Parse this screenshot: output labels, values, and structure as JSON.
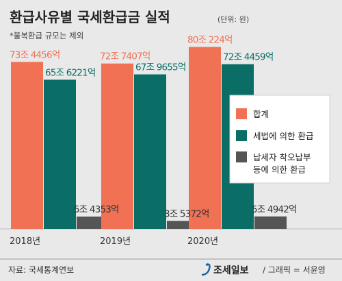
{
  "chart_data": {
    "type": "bar",
    "title": "환급사유별 국세환급금 실적",
    "unit_note": "(단위: 원)",
    "subtitle": "*불복환급 규모는 제외",
    "categories": [
      "2018년",
      "2019년",
      "2020년"
    ],
    "ylim": [
      0,
      85
    ],
    "series": [
      {
        "name": "합계",
        "color": "#f07153",
        "values": [
          73.4456,
          72.7407,
          80.0224
        ],
        "labels": [
          "73조 4456억",
          "72조 7407억",
          "80조 224억"
        ]
      },
      {
        "name": "세법에 의한 환급",
        "color": "#0a6e66",
        "values": [
          65.6221,
          67.9655,
          72.4459
        ],
        "labels": [
          "65조 6221억",
          "67조 9655억",
          "72조 4459억"
        ]
      },
      {
        "name": "납세자 착오납부 등에 의한 환급",
        "legend_lines": [
          "납세자 착오납부",
          "등에 의한 환급"
        ],
        "color": "#555555",
        "values": [
          5.4353,
          3.5372,
          5.4942
        ],
        "labels": [
          "5조 4353억",
          "3조 5372억",
          "5조 4942억"
        ]
      }
    ],
    "legend_position": "right",
    "grid": false
  },
  "footer": {
    "source": "자료: 국세통계연보",
    "brand": "조세일보",
    "credit": "/ 그래픽 = 서윤영"
  }
}
